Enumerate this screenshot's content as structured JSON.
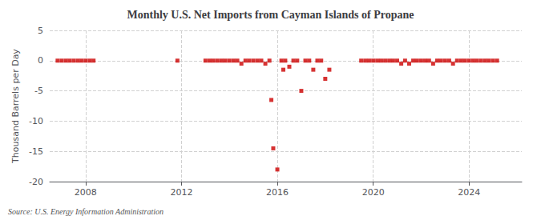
{
  "chart_data": {
    "type": "scatter",
    "title": "Monthly U.S. Net Imports from Cayman Islands of Propane",
    "ylabel": "Thousand Barrels per Day",
    "annotation": "Source: U.S. Energy Information Administration",
    "x": [
      2006.83,
      2007.0,
      2007.17,
      2007.33,
      2007.5,
      2007.67,
      2007.83,
      2008.0,
      2008.17,
      2008.33,
      2011.83,
      2013.0,
      2013.17,
      2013.33,
      2013.5,
      2013.67,
      2013.83,
      2014.0,
      2014.17,
      2014.33,
      2014.5,
      2014.67,
      2014.83,
      2015.0,
      2015.17,
      2015.33,
      2015.5,
      2015.67,
      2015.75,
      2015.83,
      2016.0,
      2016.17,
      2016.25,
      2016.33,
      2016.5,
      2016.67,
      2016.83,
      2017.0,
      2017.17,
      2017.33,
      2017.5,
      2017.67,
      2017.83,
      2018.0,
      2018.17,
      2019.5,
      2019.67,
      2019.83,
      2020.0,
      2020.17,
      2020.33,
      2020.5,
      2020.67,
      2020.83,
      2021.0,
      2021.17,
      2021.33,
      2021.5,
      2021.67,
      2021.83,
      2022.0,
      2022.17,
      2022.33,
      2022.5,
      2022.67,
      2022.83,
      2023.0,
      2023.17,
      2023.33,
      2023.5,
      2023.67,
      2023.83,
      2024.0,
      2024.17,
      2024.33,
      2024.5,
      2024.67,
      2024.83,
      2025.0,
      2025.17
    ],
    "values": [
      0,
      0,
      0,
      0,
      0,
      0,
      0,
      0,
      0,
      0,
      0,
      0,
      0,
      0,
      0,
      0,
      0,
      0,
      0,
      0,
      -0.5,
      0,
      0,
      0,
      0,
      0,
      -0.5,
      0,
      -6.5,
      -14.5,
      -18.0,
      0,
      -1.5,
      0,
      -1.0,
      0,
      0,
      -5.0,
      0,
      0,
      -1.5,
      0,
      0,
      -3.0,
      -1.5,
      0,
      0,
      0,
      0,
      0,
      0,
      0,
      0,
      0,
      0,
      -0.5,
      0,
      -0.5,
      0,
      0,
      0,
      0,
      0,
      -0.5,
      0,
      0,
      0,
      0,
      -0.5,
      0,
      0,
      0,
      0,
      0,
      0,
      0,
      0,
      0,
      0,
      0
    ],
    "color": "#cc0000",
    "marker": "square",
    "xlim": [
      2006.5,
      2026.2
    ],
    "xticks": [
      2008,
      2012,
      2016,
      2020,
      2024
    ],
    "ylim": [
      -20,
      5
    ],
    "yticks": [
      5,
      0,
      -5,
      -10,
      -15,
      -20
    ],
    "grid": true
  }
}
